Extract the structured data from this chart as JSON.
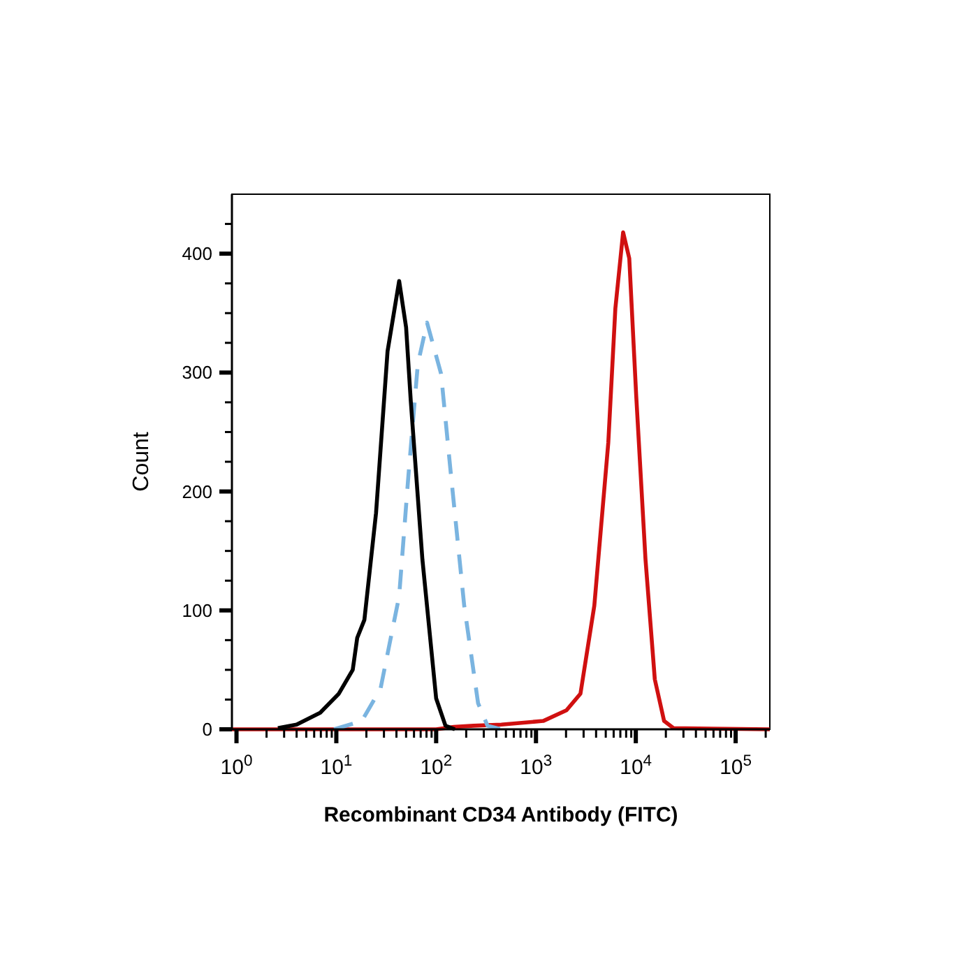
{
  "chart_data": {
    "type": "line",
    "xlabel": "Recombinant CD34 Antibody (FITC)",
    "ylabel": "Count",
    "log": "x",
    "grid": false,
    "xlim": [
      0.9,
      220000
    ],
    "ylim": [
      0,
      450
    ],
    "xticks": [
      {
        "value": 1,
        "label": "10$^{0}$"
      },
      {
        "value": 2,
        "label": null
      },
      {
        "value": 3,
        "label": null
      },
      {
        "value": 4,
        "label": null
      },
      {
        "value": 5,
        "label": null
      },
      {
        "value": 6,
        "label": null
      },
      {
        "value": 7,
        "label": null
      },
      {
        "value": 8,
        "label": null
      },
      {
        "value": 9,
        "label": null
      },
      {
        "value": 10,
        "label": "10$^{1}$"
      },
      {
        "value": 20,
        "label": null
      },
      {
        "value": 30,
        "label": null
      },
      {
        "value": 40,
        "label": null
      },
      {
        "value": 50,
        "label": null
      },
      {
        "value": 60,
        "label": null
      },
      {
        "value": 70,
        "label": null
      },
      {
        "value": 80,
        "label": null
      },
      {
        "value": 90,
        "label": null
      },
      {
        "value": 100,
        "label": "10$^{2}$"
      },
      {
        "value": 200,
        "label": null
      },
      {
        "value": 300,
        "label": null
      },
      {
        "value": 400,
        "label": null
      },
      {
        "value": 500,
        "label": null
      },
      {
        "value": 600,
        "label": null
      },
      {
        "value": 700,
        "label": null
      },
      {
        "value": 800,
        "label": null
      },
      {
        "value": 900,
        "label": null
      },
      {
        "value": 1000,
        "label": "10$^{3}$"
      },
      {
        "value": 2000,
        "label": null
      },
      {
        "value": 3000,
        "label": null
      },
      {
        "value": 4000,
        "label": null
      },
      {
        "value": 5000,
        "label": null
      },
      {
        "value": 6000,
        "label": null
      },
      {
        "value": 7000,
        "label": null
      },
      {
        "value": 8000,
        "label": null
      },
      {
        "value": 9000,
        "label": null
      },
      {
        "value": 10000,
        "label": "10$^{4}$"
      },
      {
        "value": 20000,
        "label": null
      },
      {
        "value": 30000,
        "label": null
      },
      {
        "value": 40000,
        "label": null
      },
      {
        "value": 50000,
        "label": null
      },
      {
        "value": 60000,
        "label": null
      },
      {
        "value": 70000,
        "label": null
      },
      {
        "value": 80000,
        "label": null
      },
      {
        "value": 90000,
        "label": null
      },
      {
        "value": 100000,
        "label": "10$^{5}$"
      },
      {
        "value": 200000,
        "label": null
      }
    ],
    "yticks": [
      0,
      {
        "value": 25,
        "label": null
      },
      {
        "value": 50,
        "label": null
      },
      {
        "value": 75,
        "label": null
      },
      100,
      {
        "value": 125,
        "label": null
      },
      {
        "value": 150,
        "label": null
      },
      {
        "value": 175,
        "label": null
      },
      200,
      {
        "value": 225,
        "label": null
      },
      {
        "value": 250,
        "label": null
      },
      {
        "value": 275,
        "label": null
      },
      300,
      {
        "value": 325,
        "label": null
      },
      {
        "value": 350,
        "label": null
      },
      {
        "value": 375,
        "label": null
      },
      400,
      {
        "value": 425,
        "label": null
      }
    ],
    "series": [
      {
        "color": "#d01010",
        "line_style": "solid",
        "x": [
          0.9,
          100,
          150,
          237,
          450,
          1180,
          2020,
          2790,
          3840,
          5300,
          6240,
          7460,
          8600,
          10100,
          12500,
          15500,
          19200,
          23800,
          220000
        ],
        "values": [
          0,
          0,
          2,
          3,
          4,
          7,
          16,
          30,
          104,
          241,
          354,
          418,
          396,
          280,
          143,
          42,
          7,
          1,
          0
        ]
      },
      {
        "color": "#7ab4e0",
        "line_style": "dashed",
        "x": [
          9.5,
          18,
          27.7,
          42.6,
          52.7,
          65.5,
          81,
          112,
          138,
          191,
          263,
          327,
          450
        ],
        "values": [
          0,
          7,
          34,
          112,
          213,
          307,
          342,
          299,
          221,
          104,
          22,
          3,
          0
        ]
      },
      {
        "color": "#000000",
        "line_style": "solid",
        "x": [
          2.6,
          4,
          6.9,
          10.6,
          14.6,
          16.2,
          19.1,
          25,
          32.6,
          42.6,
          50,
          55.7,
          72.8,
          100,
          124,
          154
        ],
        "values": [
          1,
          4,
          14,
          30,
          50,
          77,
          92,
          182,
          318,
          377,
          338,
          276,
          143,
          26,
          3,
          0
        ]
      }
    ]
  }
}
